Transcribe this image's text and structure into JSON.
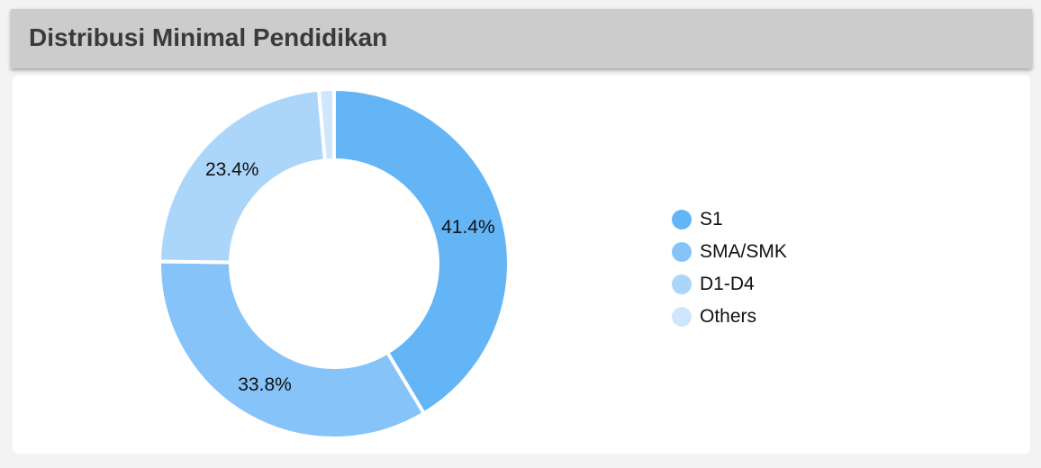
{
  "header": {
    "title": "Distribusi Minimal Pendidikan"
  },
  "chart_data": {
    "type": "pie",
    "variant": "donut",
    "title": "Distribusi Minimal Pendidikan",
    "categories": [
      "S1",
      "SMA/SMK",
      "D1-D4",
      "Others"
    ],
    "values": [
      41.4,
      33.8,
      23.4,
      1.4
    ],
    "value_labels": [
      "41.4%",
      "33.8%",
      "23.4%",
      ""
    ],
    "colors": [
      "#64b5f6",
      "#86c3f8",
      "#acd5fa",
      "#cfe6fc"
    ],
    "legend": "right"
  }
}
